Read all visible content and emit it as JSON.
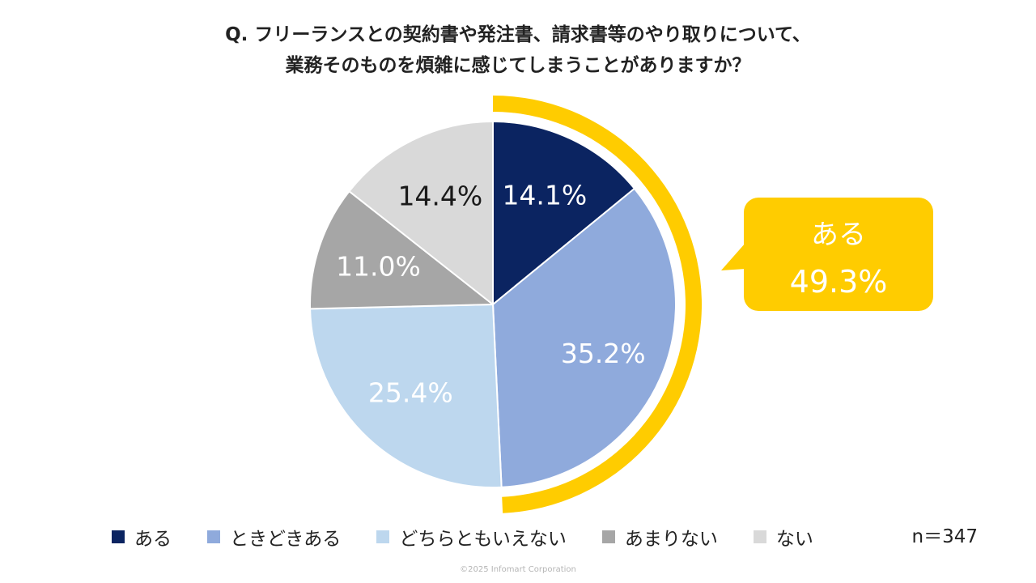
{
  "title": {
    "line1": "Q. フリーランスとの契約書や発注書、請求書等のやり取りについて、",
    "line2": "業務そのものを煩雑に感じてしまうことがありますか？"
  },
  "chart_data": {
    "type": "pie",
    "start_angle": "12 o'clock",
    "direction": "clockwise",
    "slices": [
      {
        "label": "ある",
        "value": 14.1,
        "value_label": "14.1%",
        "color": "#0B2461",
        "text_color": "#ffffff"
      },
      {
        "label": "ときどきある",
        "value": 35.2,
        "value_label": "35.2%",
        "color": "#8FAADC",
        "text_color": "#ffffff"
      },
      {
        "label": "どちらともいえない",
        "value": 25.4,
        "value_label": "25.4%",
        "color": "#BDD7EE",
        "text_color": "#ffffff"
      },
      {
        "label": "あまりない",
        "value": 11.0,
        "value_label": "11.0%",
        "color": "#A6A6A6",
        "text_color": "#ffffff"
      },
      {
        "label": "ない",
        "value": 14.4,
        "value_label": "14.4%",
        "color": "#D9D9D9",
        "text_color": "#1a1a1a"
      }
    ],
    "highlight": {
      "covers": [
        "ある",
        "ときどきある"
      ],
      "value": 49.3,
      "label": "ある",
      "value_label": "49.3%",
      "color": "#FFCC00"
    },
    "sample_size": "n＝347"
  },
  "footer": {
    "copyright": "©2025 Infomart Corporation"
  }
}
